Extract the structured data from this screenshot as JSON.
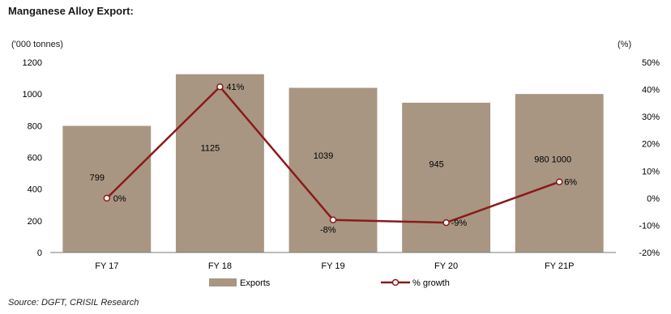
{
  "title": "Manganese Alloy Export:",
  "source": "Source: DGFT, CRISIL Research",
  "chart_data": {
    "type": "bar",
    "categories": [
      "FY 17",
      "FY 18",
      "FY 19",
      "FY 20",
      "FY 21P"
    ],
    "left_axis_label": "('000 tonnes)",
    "right_axis_label": "(%)",
    "left_axis": {
      "range": [
        0,
        1200
      ],
      "ticks": [
        0,
        200,
        400,
        600,
        800,
        1000,
        1200
      ]
    },
    "right_axis": {
      "range": [
        -20,
        50
      ],
      "ticks": [
        "-20%",
        "-10%",
        "0%",
        "10%",
        "20%",
        "30%",
        "40%",
        "50%"
      ]
    },
    "series": [
      {
        "name": "Exports",
        "type": "bar",
        "axis": "left",
        "values": [
          799,
          1125,
          1039,
          945,
          1000
        ],
        "labels": [
          "799",
          "1125",
          "1039",
          "945",
          "980 1000"
        ]
      },
      {
        "name": "% growth",
        "type": "line",
        "axis": "right",
        "values": [
          0,
          41,
          -8,
          -9,
          6
        ],
        "labels": [
          "0%",
          "41%",
          "-8%",
          "-9%",
          "6%"
        ]
      }
    ],
    "grid": false,
    "legend": "bottom",
    "colors": {
      "bar": "#a89683",
      "line": "#8b1a1a",
      "marker_fill": "#ffffff"
    }
  }
}
